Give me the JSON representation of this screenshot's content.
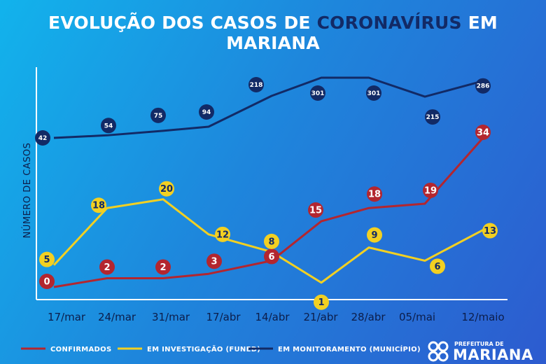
{
  "header": {
    "title_part1": "EVOLUÇÃO DOS CASOS DE ",
    "title_highlight": "CORONAVÍRUS",
    "title_part2": " EM MARIANA"
  },
  "logo": {
    "top_text": "PREFEITURA DE",
    "main_text": "MARIANA"
  },
  "chart_data": {
    "type": "line",
    "title": "EVOLUÇÃO DOS CASOS DE CORONAVÍRUS EM MARIANA",
    "ylabel": "NÚMERO DE CASOS",
    "xlabel": "",
    "categories": [
      "17/mar",
      "24/mar",
      "31/mar",
      "17/abr",
      "14/abr",
      "21/abr",
      "28/abr",
      "05/mai",
      "12/maio"
    ],
    "legend_position": "bottom",
    "grid": false,
    "series": [
      {
        "name": "CONFIRMADOS",
        "color": "#b3262f",
        "values": [
          0,
          2,
          2,
          3,
          6,
          15,
          18,
          19,
          34
        ]
      },
      {
        "name": "EM INVESTIGAÇÃO (FUNED)",
        "color": "#f2d022",
        "values": [
          5,
          18,
          20,
          12,
          8,
          1,
          9,
          6,
          13
        ]
      },
      {
        "name": "EM MONITORAMENTO (MUNICÍPIO)",
        "color": "#122a66",
        "values": [
          42,
          54,
          75,
          94,
          218,
          301,
          301,
          215,
          286
        ]
      }
    ]
  }
}
